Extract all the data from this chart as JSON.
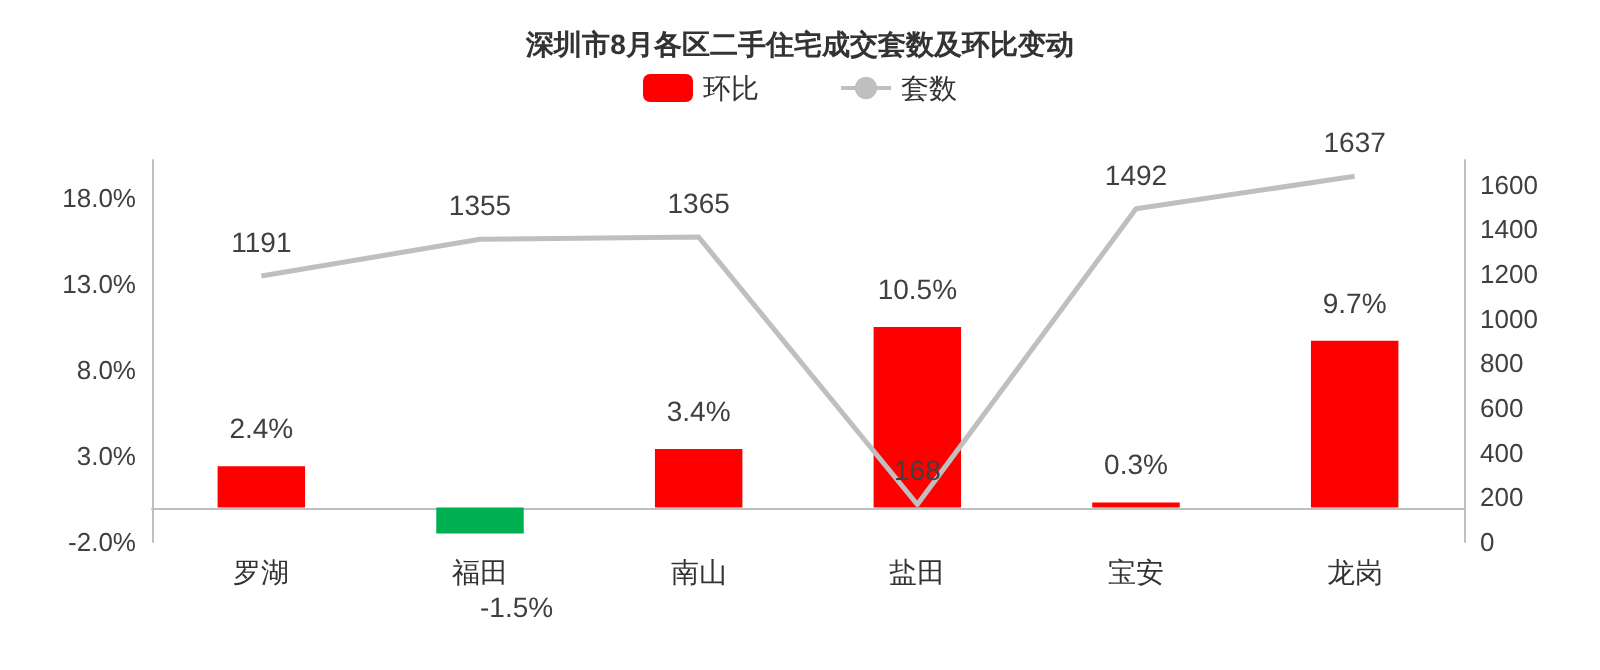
{
  "chart_data": {
    "type": "bar",
    "title": "深圳市8月各区二手住宅成交套数及环比变动",
    "categories": [
      "罗湖",
      "福田",
      "南山",
      "盐田",
      "宝安",
      "龙岗"
    ],
    "series": [
      {
        "name": "环比",
        "colors": [
          "#ff0000",
          "#00b050",
          "#ff0000",
          "#ff0000",
          "#ff0000",
          "#ff0000"
        ],
        "values": [
          2.4,
          -1.5,
          3.4,
          10.5,
          0.3,
          9.7
        ],
        "value_labels": [
          "2.4%",
          "-1.5%",
          "3.4%",
          "10.5%",
          "0.3%",
          "9.7%"
        ]
      },
      {
        "name": "套数",
        "type": "line",
        "axis": "y2",
        "color": "#bfbfbf",
        "values": [
          1191,
          1355,
          1365,
          168,
          1492,
          1637
        ]
      }
    ],
    "ylim": [
      -2,
      20.2
    ],
    "yticks": [
      {
        "value": -2,
        "label": "-2.0%"
      },
      {
        "value": 3,
        "label": "3.0%"
      },
      {
        "value": 8,
        "label": "8.0%"
      },
      {
        "value": 13,
        "label": "13.0%"
      },
      {
        "value": 18,
        "label": "18.0%"
      }
    ],
    "y2lim": [
      0,
      1710
    ],
    "y2ticks": [
      0,
      200,
      400,
      600,
      800,
      1000,
      1200,
      1400,
      1600
    ],
    "data_labels": true,
    "legend": "top",
    "grid": false,
    "marker": "none"
  }
}
